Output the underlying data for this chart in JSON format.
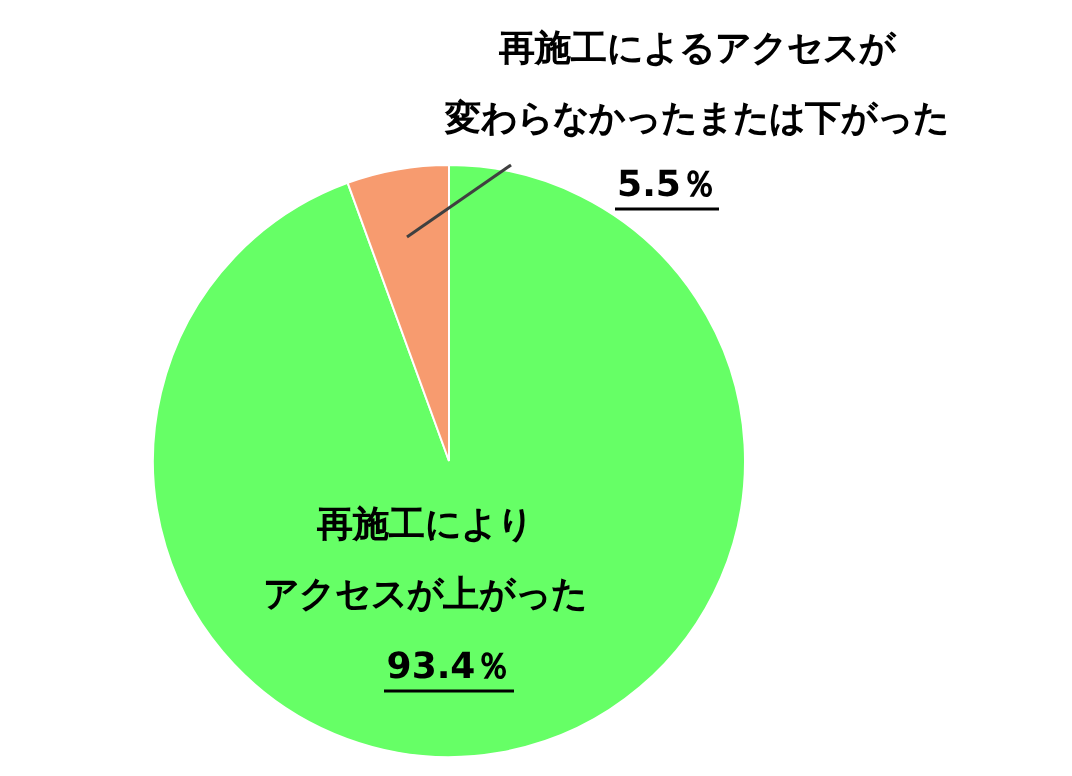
{
  "chart_data": {
    "type": "pie",
    "categories": [
      "再施工によりアクセスが上がった",
      "再施工によるアクセスが変わらなかったまたは下がった"
    ],
    "values": [
      93.4,
      5.5
    ],
    "colors": [
      "#66ff66",
      "#f79b6f"
    ],
    "value_labels": [
      "93.4％",
      "5.5％"
    ]
  }
}
